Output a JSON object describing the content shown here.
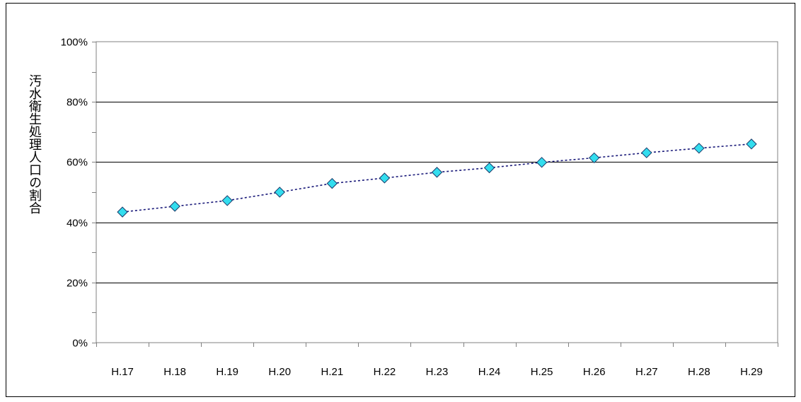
{
  "chart_data": {
    "type": "line",
    "ylabel": "汚水衛生処理人口の割合",
    "xlabel": "",
    "title": "",
    "categories": [
      "H.17",
      "H.18",
      "H.19",
      "H.20",
      "H.21",
      "H.22",
      "H.23",
      "H.24",
      "H.25",
      "H.26",
      "H.27",
      "H.28",
      "H.29"
    ],
    "series": [
      {
        "values": [
          43.4,
          45.3,
          47.2,
          50.0,
          52.9,
          54.7,
          56.6,
          58.1,
          59.9,
          61.4,
          63.1,
          64.6,
          66.0
        ]
      }
    ],
    "ylim": [
      0,
      100
    ],
    "yticks": [
      0,
      20,
      40,
      60,
      80,
      100
    ],
    "yticklabels": [
      "0%",
      "20%",
      "40%",
      "60%",
      "80%",
      "100%"
    ],
    "grid": true,
    "legend": "none",
    "colors": {
      "line": "#1a1a7a",
      "marker_fill": "#33ddee",
      "marker_stroke": "#1a3a6a",
      "grid": "#000000",
      "axis": "#808080"
    }
  }
}
